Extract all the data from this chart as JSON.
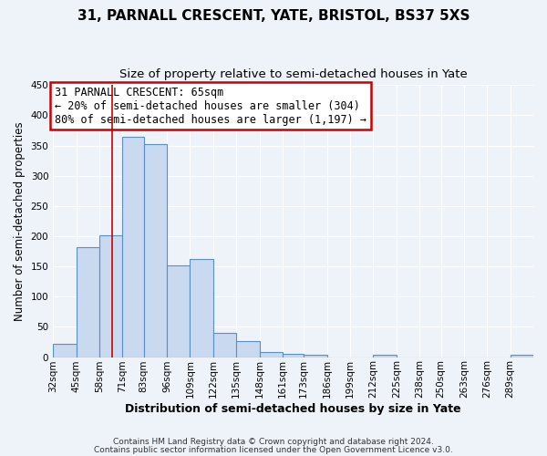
{
  "title1": "31, PARNALL CRESCENT, YATE, BRISTOL, BS37 5XS",
  "title2": "Size of property relative to semi-detached houses in Yate",
  "xlabel": "Distribution of semi-detached houses by size in Yate",
  "ylabel": "Number of semi-detached properties",
  "bar_labels": [
    "32sqm",
    "45sqm",
    "58sqm",
    "71sqm",
    "83sqm",
    "96sqm",
    "109sqm",
    "122sqm",
    "135sqm",
    "148sqm",
    "161sqm",
    "173sqm",
    "186sqm",
    "199sqm",
    "212sqm",
    "225sqm",
    "238sqm",
    "250sqm",
    "263sqm",
    "276sqm",
    "289sqm"
  ],
  "bar_values": [
    22,
    182,
    201,
    365,
    352,
    151,
    163,
    40,
    26,
    8,
    6,
    4,
    0,
    0,
    4,
    0,
    0,
    0,
    0,
    0,
    4
  ],
  "bar_color": "#c9d9f0",
  "bar_edge_color": "#5b8fc9",
  "property_line_x": 65,
  "bin_edges": [
    32,
    45,
    58,
    71,
    83,
    96,
    109,
    122,
    135,
    148,
    161,
    173,
    186,
    199,
    212,
    225,
    238,
    250,
    263,
    276,
    289,
    302
  ],
  "annotation_title": "31 PARNALL CRESCENT: 65sqm",
  "annotation_line1": "← 20% of semi-detached houses are smaller (304)",
  "annotation_line2": "80% of semi-detached houses are larger (1,197) →",
  "vline_color": "#cc0000",
  "annotation_box_edge_color": "#cc0000",
  "ylim": [
    0,
    450
  ],
  "yticks": [
    0,
    50,
    100,
    150,
    200,
    250,
    300,
    350,
    400,
    450
  ],
  "footer1": "Contains HM Land Registry data © Crown copyright and database right 2024.",
  "footer2": "Contains public sector information licensed under the Open Government Licence v3.0.",
  "bg_color": "#eef3fa",
  "plot_bg_color": "#eef3fa",
  "grid_color": "#ffffff",
  "title1_fontsize": 11,
  "title2_fontsize": 9.5,
  "xlabel_fontsize": 9,
  "ylabel_fontsize": 8.5,
  "annotation_fontsize": 8.5,
  "tick_fontsize": 7.5
}
